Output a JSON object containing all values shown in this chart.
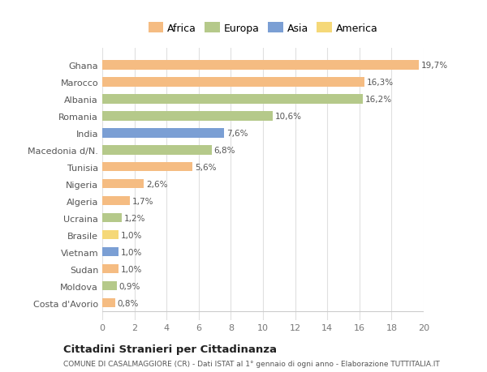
{
  "categories": [
    "Costa d'Avorio",
    "Moldova",
    "Sudan",
    "Vietnam",
    "Brasile",
    "Ucraina",
    "Algeria",
    "Nigeria",
    "Tunisia",
    "Macedonia d/N.",
    "India",
    "Romania",
    "Albania",
    "Marocco",
    "Ghana"
  ],
  "values": [
    0.8,
    0.9,
    1.0,
    1.0,
    1.0,
    1.2,
    1.7,
    2.6,
    5.6,
    6.8,
    7.6,
    10.6,
    16.2,
    16.3,
    19.7
  ],
  "labels": [
    "0,8%",
    "0,9%",
    "1,0%",
    "1,0%",
    "1,0%",
    "1,2%",
    "1,7%",
    "2,6%",
    "5,6%",
    "6,8%",
    "7,6%",
    "10,6%",
    "16,2%",
    "16,3%",
    "19,7%"
  ],
  "colors": [
    "#f5bc82",
    "#b5c98a",
    "#f5bc82",
    "#7b9fd4",
    "#f5d878",
    "#b5c98a",
    "#f5bc82",
    "#f5bc82",
    "#f5bc82",
    "#b5c98a",
    "#7b9fd4",
    "#b5c98a",
    "#b5c98a",
    "#f5bc82",
    "#f5bc82"
  ],
  "legend_labels": [
    "Africa",
    "Europa",
    "Asia",
    "America"
  ],
  "legend_colors": [
    "#f5bc82",
    "#b5c98a",
    "#7b9fd4",
    "#f5d878"
  ],
  "title": "Cittadini Stranieri per Cittadinanza",
  "subtitle": "COMUNE DI CASALMAGGIORE (CR) - Dati ISTAT al 1° gennaio di ogni anno - Elaborazione TUTTITALIA.IT",
  "xlim": [
    0,
    20
  ],
  "xticks": [
    0,
    2,
    4,
    6,
    8,
    10,
    12,
    14,
    16,
    18,
    20
  ],
  "background_color": "#ffffff",
  "bar_height": 0.55,
  "grid_color": "#e0e0e0"
}
